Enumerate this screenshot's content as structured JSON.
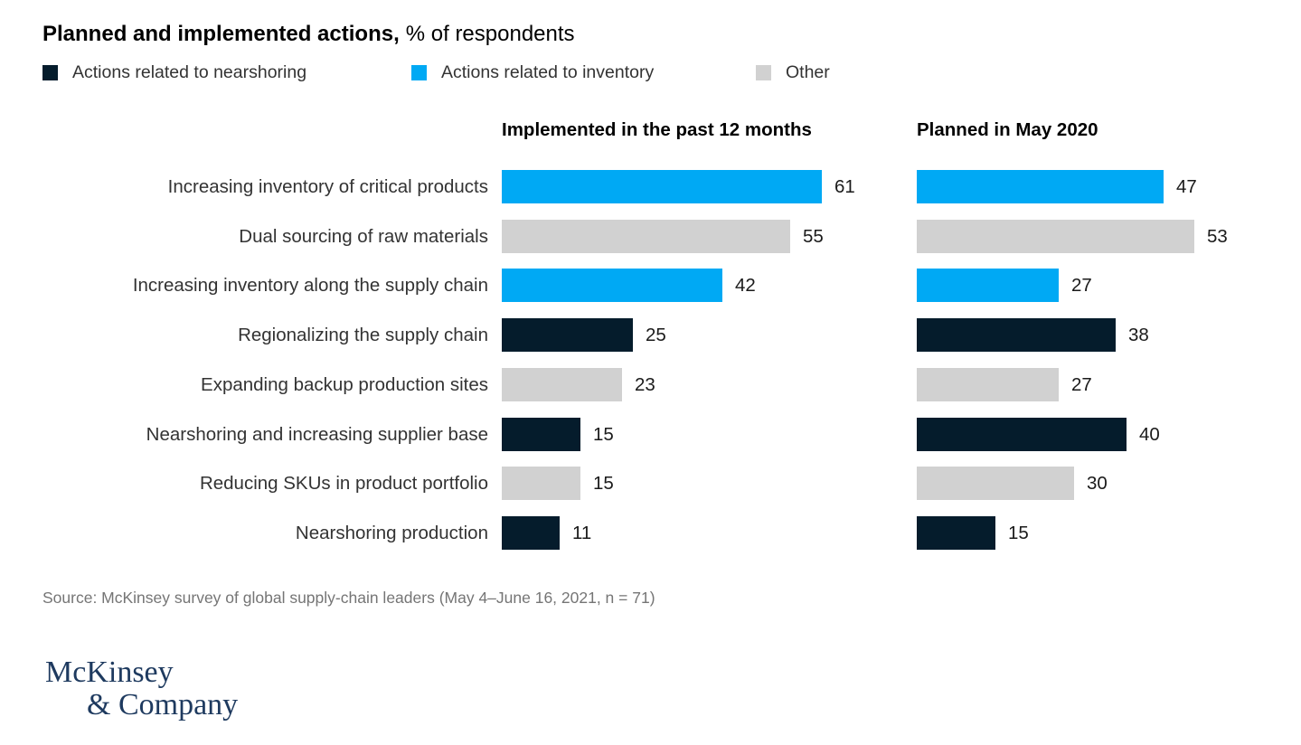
{
  "title": {
    "bold": "Planned and implemented actions,",
    "suffix": "% of respondents"
  },
  "legend": [
    {
      "label": "Actions related to nearshoring",
      "group": "nearshoring"
    },
    {
      "label": "Actions related to inventory",
      "group": "inventory"
    },
    {
      "label": "Other",
      "group": "other"
    }
  ],
  "colors": {
    "nearshoring": "#051C2C",
    "inventory": "#00A9F4",
    "other": "#D1D1D1"
  },
  "columns": [
    "Implemented in the past 12 months",
    "Planned in May 2020"
  ],
  "chart_data": {
    "type": "bar",
    "orientation": "horizontal",
    "title": "Planned and implemented actions, % of respondents",
    "categories": [
      "Increasing inventory of critical products",
      "Dual sourcing of raw materials",
      "Increasing inventory along the supply chain",
      "Regionalizing the supply chain",
      "Expanding backup production sites",
      "Nearshoring and increasing supplier base",
      "Reducing SKUs in product portfolio",
      "Nearshoring production"
    ],
    "category_groups": [
      "inventory",
      "other",
      "inventory",
      "nearshoring",
      "other",
      "nearshoring",
      "other",
      "nearshoring"
    ],
    "series": [
      {
        "name": "Implemented in the past 12 months",
        "values": [
          61,
          55,
          42,
          25,
          23,
          15,
          15,
          11
        ]
      },
      {
        "name": "Planned in May 2020",
        "values": [
          47,
          53,
          27,
          38,
          27,
          40,
          30,
          15
        ]
      }
    ],
    "value_unit": "% of respondents",
    "xlim": [
      0,
      70
    ],
    "grid": false,
    "legend_position": "top-left",
    "data_labels": true
  },
  "source": "Source: McKinsey survey of global supply-chain leaders (May 4–June 16, 2021, n = 71)",
  "logo": {
    "line1": "McKinsey",
    "line2": "& Company"
  }
}
